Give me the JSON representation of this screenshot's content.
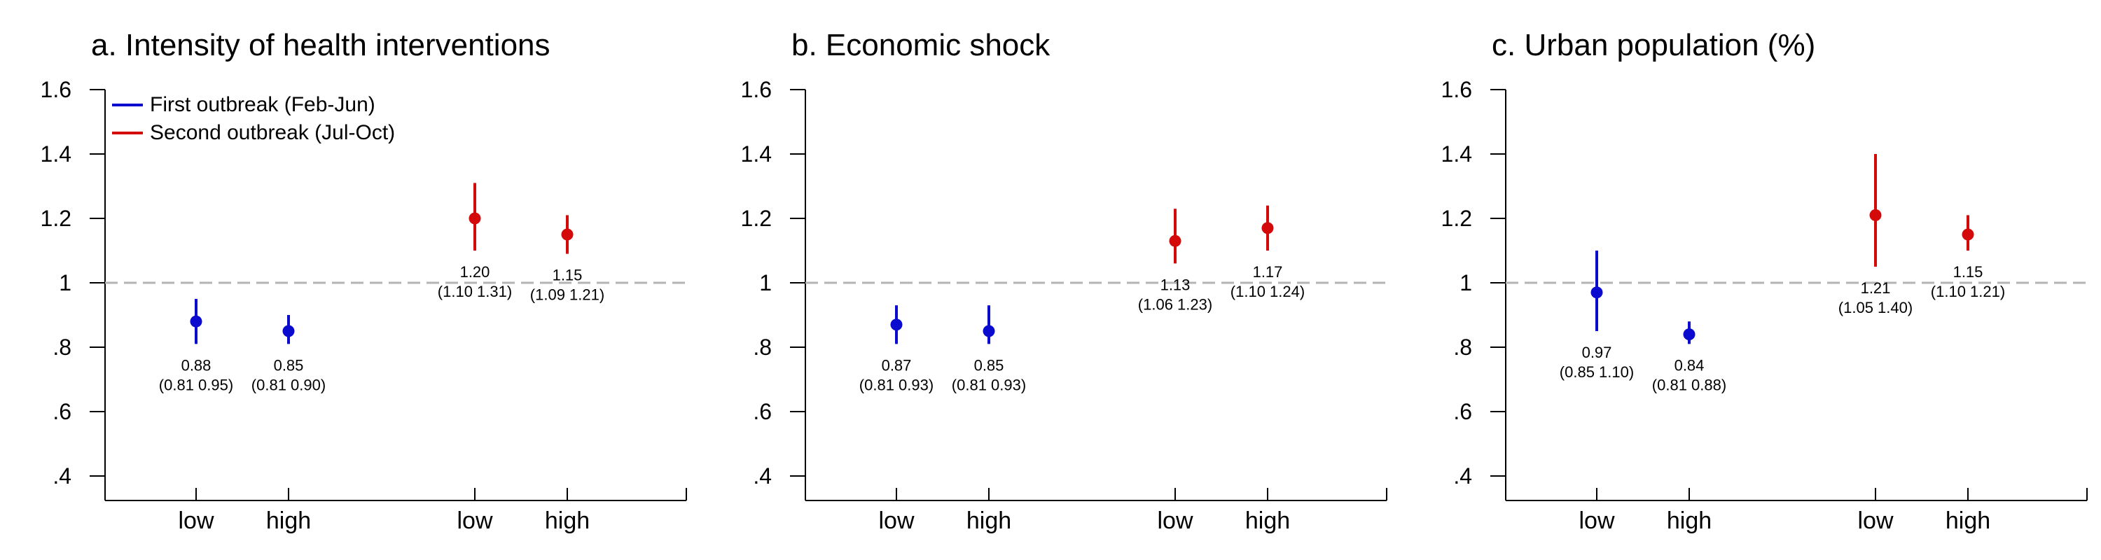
{
  "colors": {
    "first": "#0b0bd0",
    "second": "#d40a0a",
    "axis": "#000000",
    "ref": "#b4b4b4"
  },
  "legend": {
    "first": "First outbreak (Feb-Jun)",
    "second": "Second outbreak (Jul-Oct)"
  },
  "chart_data": [
    {
      "type": "scatter",
      "title": "a. Intensity of health interventions",
      "xlabel": "",
      "ylabel": "",
      "ylim": [
        0.4,
        1.6
      ],
      "yticks": [
        0.4,
        0.6,
        0.8,
        1.0,
        1.2,
        1.4,
        1.6
      ],
      "ytick_labels": [
        ".4",
        ".6",
        ".8",
        "1",
        "1.2",
        "1.4",
        "1.6"
      ],
      "reference_line": 1,
      "grid": false,
      "legend_position": "top-left",
      "categories": [
        "low",
        "high",
        "low",
        "high"
      ],
      "series": [
        {
          "name": "First outbreak (Feb-Jun)",
          "points": [
            {
              "category": "low",
              "estimate": 0.88,
              "ci": [
                0.81,
                0.95
              ],
              "label": "0.88",
              "ci_label": "(0.81 0.95)"
            },
            {
              "category": "high",
              "estimate": 0.85,
              "ci": [
                0.81,
                0.9
              ],
              "label": "0.85",
              "ci_label": "(0.81 0.90)"
            }
          ]
        },
        {
          "name": "Second outbreak (Jul-Oct)",
          "points": [
            {
              "category": "low",
              "estimate": 1.2,
              "ci": [
                1.1,
                1.31
              ],
              "label": "1.20",
              "ci_label": "(1.10 1.31)"
            },
            {
              "category": "high",
              "estimate": 1.15,
              "ci": [
                1.09,
                1.21
              ],
              "label": "1.15",
              "ci_label": "(1.09 1.21)"
            }
          ]
        }
      ]
    },
    {
      "type": "scatter",
      "title": "b. Economic shock",
      "xlabel": "",
      "ylabel": "",
      "ylim": [
        0.4,
        1.6
      ],
      "yticks": [
        0.4,
        0.6,
        0.8,
        1.0,
        1.2,
        1.4,
        1.6
      ],
      "ytick_labels": [
        ".4",
        ".6",
        ".8",
        "1",
        "1.2",
        "1.4",
        "1.6"
      ],
      "reference_line": 1,
      "grid": false,
      "legend_position": "none",
      "categories": [
        "low",
        "high",
        "low",
        "high"
      ],
      "series": [
        {
          "name": "First outbreak (Feb-Jun)",
          "points": [
            {
              "category": "low",
              "estimate": 0.87,
              "ci": [
                0.81,
                0.93
              ],
              "label": "0.87",
              "ci_label": "(0.81 0.93)"
            },
            {
              "category": "high",
              "estimate": 0.85,
              "ci": [
                0.81,
                0.93
              ],
              "label": "0.85",
              "ci_label": "(0.81 0.93)"
            }
          ]
        },
        {
          "name": "Second outbreak (Jul-Oct)",
          "points": [
            {
              "category": "low",
              "estimate": 1.13,
              "ci": [
                1.06,
                1.23
              ],
              "label": "1.13",
              "ci_label": "(1.06 1.23)"
            },
            {
              "category": "high",
              "estimate": 1.17,
              "ci": [
                1.1,
                1.24
              ],
              "label": "1.17",
              "ci_label": "(1.10 1.24)"
            }
          ]
        }
      ]
    },
    {
      "type": "scatter",
      "title": "c. Urban population (%)",
      "xlabel": "",
      "ylabel": "",
      "ylim": [
        0.4,
        1.6
      ],
      "yticks": [
        0.4,
        0.6,
        0.8,
        1.0,
        1.2,
        1.4,
        1.6
      ],
      "ytick_labels": [
        ".4",
        ".6",
        ".8",
        "1",
        "1.2",
        "1.4",
        "1.6"
      ],
      "reference_line": 1,
      "grid": false,
      "legend_position": "none",
      "categories": [
        "low",
        "high",
        "low",
        "high"
      ],
      "series": [
        {
          "name": "First outbreak (Feb-Jun)",
          "points": [
            {
              "category": "low",
              "estimate": 0.97,
              "ci": [
                0.85,
                1.1
              ],
              "label": "0.97",
              "ci_label": "(0.85 1.10)"
            },
            {
              "category": "high",
              "estimate": 0.84,
              "ci": [
                0.81,
                0.88
              ],
              "label": "0.84",
              "ci_label": "(0.81 0.88)"
            }
          ]
        },
        {
          "name": "Second outbreak (Jul-Oct)",
          "points": [
            {
              "category": "low",
              "estimate": 1.21,
              "ci": [
                1.05,
                1.4
              ],
              "label": "1.21",
              "ci_label": "(1.05 1.40)"
            },
            {
              "category": "high",
              "estimate": 1.15,
              "ci": [
                1.1,
                1.21
              ],
              "label": "1.15",
              "ci_label": "(1.10 1.21)"
            }
          ]
        }
      ]
    }
  ]
}
